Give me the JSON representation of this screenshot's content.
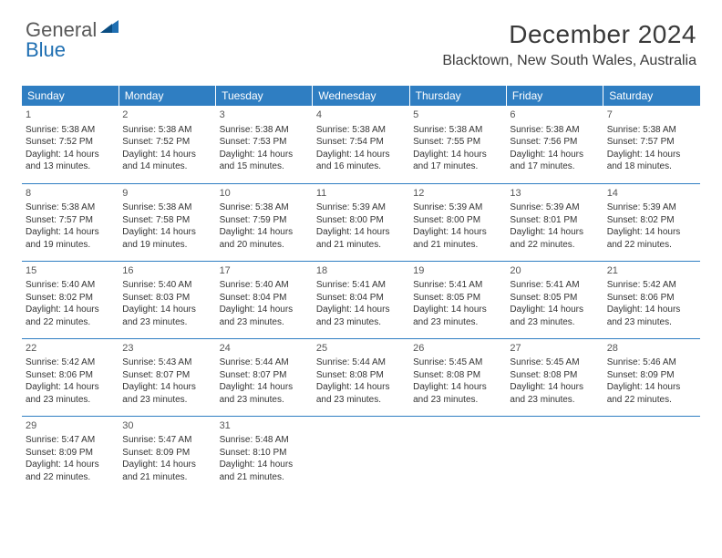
{
  "brand": {
    "part1": "General",
    "part2": "Blue"
  },
  "title": "December 2024",
  "location": "Blacktown, New South Wales, Australia",
  "colors": {
    "header_bg": "#2f7ec2",
    "header_fg": "#ffffff",
    "rule": "#2f7ec2",
    "logo_gray": "#595959",
    "logo_blue": "#1f6fb2"
  },
  "weekdays": [
    "Sunday",
    "Monday",
    "Tuesday",
    "Wednesday",
    "Thursday",
    "Friday",
    "Saturday"
  ],
  "weeks": [
    [
      {
        "n": "1",
        "sr": "Sunrise: 5:38 AM",
        "ss": "Sunset: 7:52 PM",
        "d1": "Daylight: 14 hours",
        "d2": "and 13 minutes."
      },
      {
        "n": "2",
        "sr": "Sunrise: 5:38 AM",
        "ss": "Sunset: 7:52 PM",
        "d1": "Daylight: 14 hours",
        "d2": "and 14 minutes."
      },
      {
        "n": "3",
        "sr": "Sunrise: 5:38 AM",
        "ss": "Sunset: 7:53 PM",
        "d1": "Daylight: 14 hours",
        "d2": "and 15 minutes."
      },
      {
        "n": "4",
        "sr": "Sunrise: 5:38 AM",
        "ss": "Sunset: 7:54 PM",
        "d1": "Daylight: 14 hours",
        "d2": "and 16 minutes."
      },
      {
        "n": "5",
        "sr": "Sunrise: 5:38 AM",
        "ss": "Sunset: 7:55 PM",
        "d1": "Daylight: 14 hours",
        "d2": "and 17 minutes."
      },
      {
        "n": "6",
        "sr": "Sunrise: 5:38 AM",
        "ss": "Sunset: 7:56 PM",
        "d1": "Daylight: 14 hours",
        "d2": "and 17 minutes."
      },
      {
        "n": "7",
        "sr": "Sunrise: 5:38 AM",
        "ss": "Sunset: 7:57 PM",
        "d1": "Daylight: 14 hours",
        "d2": "and 18 minutes."
      }
    ],
    [
      {
        "n": "8",
        "sr": "Sunrise: 5:38 AM",
        "ss": "Sunset: 7:57 PM",
        "d1": "Daylight: 14 hours",
        "d2": "and 19 minutes."
      },
      {
        "n": "9",
        "sr": "Sunrise: 5:38 AM",
        "ss": "Sunset: 7:58 PM",
        "d1": "Daylight: 14 hours",
        "d2": "and 19 minutes."
      },
      {
        "n": "10",
        "sr": "Sunrise: 5:38 AM",
        "ss": "Sunset: 7:59 PM",
        "d1": "Daylight: 14 hours",
        "d2": "and 20 minutes."
      },
      {
        "n": "11",
        "sr": "Sunrise: 5:39 AM",
        "ss": "Sunset: 8:00 PM",
        "d1": "Daylight: 14 hours",
        "d2": "and 21 minutes."
      },
      {
        "n": "12",
        "sr": "Sunrise: 5:39 AM",
        "ss": "Sunset: 8:00 PM",
        "d1": "Daylight: 14 hours",
        "d2": "and 21 minutes."
      },
      {
        "n": "13",
        "sr": "Sunrise: 5:39 AM",
        "ss": "Sunset: 8:01 PM",
        "d1": "Daylight: 14 hours",
        "d2": "and 22 minutes."
      },
      {
        "n": "14",
        "sr": "Sunrise: 5:39 AM",
        "ss": "Sunset: 8:02 PM",
        "d1": "Daylight: 14 hours",
        "d2": "and 22 minutes."
      }
    ],
    [
      {
        "n": "15",
        "sr": "Sunrise: 5:40 AM",
        "ss": "Sunset: 8:02 PM",
        "d1": "Daylight: 14 hours",
        "d2": "and 22 minutes."
      },
      {
        "n": "16",
        "sr": "Sunrise: 5:40 AM",
        "ss": "Sunset: 8:03 PM",
        "d1": "Daylight: 14 hours",
        "d2": "and 23 minutes."
      },
      {
        "n": "17",
        "sr": "Sunrise: 5:40 AM",
        "ss": "Sunset: 8:04 PM",
        "d1": "Daylight: 14 hours",
        "d2": "and 23 minutes."
      },
      {
        "n": "18",
        "sr": "Sunrise: 5:41 AM",
        "ss": "Sunset: 8:04 PM",
        "d1": "Daylight: 14 hours",
        "d2": "and 23 minutes."
      },
      {
        "n": "19",
        "sr": "Sunrise: 5:41 AM",
        "ss": "Sunset: 8:05 PM",
        "d1": "Daylight: 14 hours",
        "d2": "and 23 minutes."
      },
      {
        "n": "20",
        "sr": "Sunrise: 5:41 AM",
        "ss": "Sunset: 8:05 PM",
        "d1": "Daylight: 14 hours",
        "d2": "and 23 minutes."
      },
      {
        "n": "21",
        "sr": "Sunrise: 5:42 AM",
        "ss": "Sunset: 8:06 PM",
        "d1": "Daylight: 14 hours",
        "d2": "and 23 minutes."
      }
    ],
    [
      {
        "n": "22",
        "sr": "Sunrise: 5:42 AM",
        "ss": "Sunset: 8:06 PM",
        "d1": "Daylight: 14 hours",
        "d2": "and 23 minutes."
      },
      {
        "n": "23",
        "sr": "Sunrise: 5:43 AM",
        "ss": "Sunset: 8:07 PM",
        "d1": "Daylight: 14 hours",
        "d2": "and 23 minutes."
      },
      {
        "n": "24",
        "sr": "Sunrise: 5:44 AM",
        "ss": "Sunset: 8:07 PM",
        "d1": "Daylight: 14 hours",
        "d2": "and 23 minutes."
      },
      {
        "n": "25",
        "sr": "Sunrise: 5:44 AM",
        "ss": "Sunset: 8:08 PM",
        "d1": "Daylight: 14 hours",
        "d2": "and 23 minutes."
      },
      {
        "n": "26",
        "sr": "Sunrise: 5:45 AM",
        "ss": "Sunset: 8:08 PM",
        "d1": "Daylight: 14 hours",
        "d2": "and 23 minutes."
      },
      {
        "n": "27",
        "sr": "Sunrise: 5:45 AM",
        "ss": "Sunset: 8:08 PM",
        "d1": "Daylight: 14 hours",
        "d2": "and 23 minutes."
      },
      {
        "n": "28",
        "sr": "Sunrise: 5:46 AM",
        "ss": "Sunset: 8:09 PM",
        "d1": "Daylight: 14 hours",
        "d2": "and 22 minutes."
      }
    ],
    [
      {
        "n": "29",
        "sr": "Sunrise: 5:47 AM",
        "ss": "Sunset: 8:09 PM",
        "d1": "Daylight: 14 hours",
        "d2": "and 22 minutes."
      },
      {
        "n": "30",
        "sr": "Sunrise: 5:47 AM",
        "ss": "Sunset: 8:09 PM",
        "d1": "Daylight: 14 hours",
        "d2": "and 21 minutes."
      },
      {
        "n": "31",
        "sr": "Sunrise: 5:48 AM",
        "ss": "Sunset: 8:10 PM",
        "d1": "Daylight: 14 hours",
        "d2": "and 21 minutes."
      },
      null,
      null,
      null,
      null
    ]
  ]
}
